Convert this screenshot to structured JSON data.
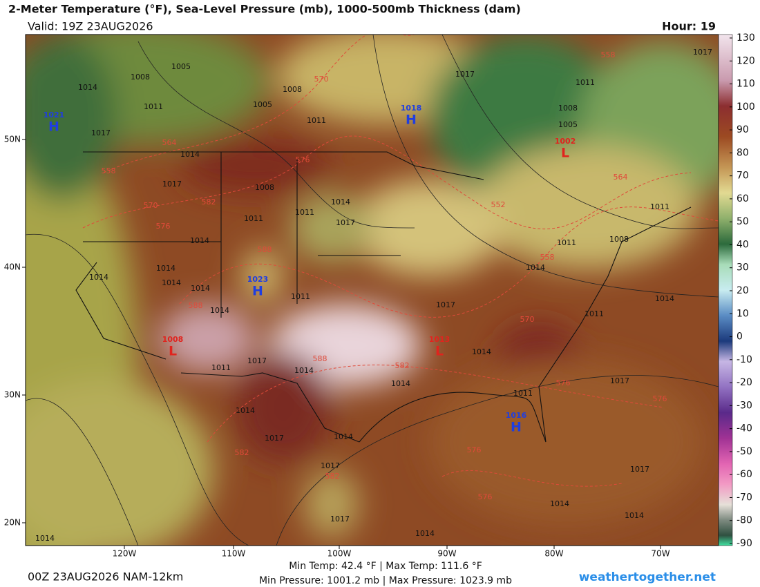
{
  "header": {
    "title": "2-Meter Temperature (°F), Sea-Level Pressure (mb), 1000-500mb Thickness (dam)",
    "valid": "Valid: 19Z 23AUG2026",
    "hour": "Hour: 19"
  },
  "colorbar": {
    "ticks": [
      130,
      120,
      110,
      100,
      90,
      80,
      70,
      60,
      50,
      40,
      30,
      20,
      10,
      0,
      -10,
      -20,
      -30,
      -40,
      -50,
      -60,
      -70,
      -80,
      -90
    ]
  },
  "map": {
    "longitudes": [
      "120W",
      "110W",
      "100W",
      "90W",
      "80W",
      "70W"
    ],
    "latitudes": [
      "50N",
      "40N",
      "30N",
      "20N"
    ],
    "pressure_centers": [
      {
        "letter": "H",
        "value": 1021
      },
      {
        "letter": "H",
        "value": 1018
      },
      {
        "letter": "H",
        "value": 1023
      },
      {
        "letter": "H",
        "value": 1016
      },
      {
        "letter": "L",
        "value": 1002
      },
      {
        "letter": "L",
        "value": 1013
      },
      {
        "letter": "L",
        "value": 1008
      }
    ],
    "isobar_labels": [
      1005,
      1008,
      1014,
      1011,
      1017,
      1014,
      1017,
      1008,
      1005,
      1011,
      1017,
      1011,
      1008,
      1005,
      1017,
      1011,
      1008,
      1011,
      1014,
      1014,
      1017,
      1017,
      1014,
      1014,
      1014,
      1017,
      1017,
      1014,
      1017,
      1014,
      1014,
      1011,
      1017,
      1014,
      1014,
      1011,
      1014,
      1014,
      1014,
      1014,
      1011,
      1011,
      1011,
      1014,
      1017,
      1014,
      1008,
      1014,
      1011,
      1017,
      1014
    ],
    "thickness_labels": [
      570,
      576,
      564,
      558,
      570,
      576,
      582,
      588,
      588,
      588,
      582,
      582,
      582,
      576,
      576,
      576,
      576,
      570,
      558,
      564,
      552,
      558
    ]
  },
  "footer": {
    "model": "00Z 23AUG2026 NAM-12km",
    "stats_temp": "Min Temp:  42.4 °F | Max Temp: 111.6 °F",
    "stats_pressure": "Min Pressure: 1001.2 mb | Max Pressure: 1023.9 mb",
    "site": "weathertogether.net"
  }
}
